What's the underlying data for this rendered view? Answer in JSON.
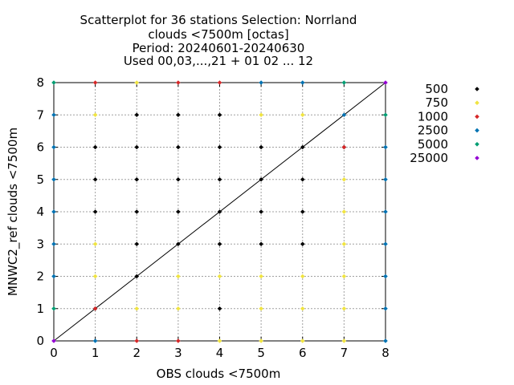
{
  "chart_data": {
    "type": "scatter",
    "title_lines": [
      "Scatterplot for   36 stations Selection: Norrland",
      "clouds <7500m [octas]",
      "Period: 20240601-20240630",
      "Used 00,03,...,21 + 01 02 ... 12"
    ],
    "xlabel": "OBS clouds <7500m",
    "ylabel": "MNWC2_ref clouds <7500m",
    "xlim": [
      0,
      8
    ],
    "ylim": [
      0,
      8
    ],
    "x_ticks": [
      "0",
      "1",
      "2",
      "3",
      "4",
      "5",
      "6",
      "7",
      "8"
    ],
    "y_ticks": [
      "0",
      "1",
      "2",
      "3",
      "4",
      "5",
      "6",
      "7",
      "8"
    ],
    "grid": true,
    "diagonal_line": true,
    "legend_position": "outside-right",
    "series": [
      {
        "name": "500",
        "color": "#000000",
        "points": [
          [
            1,
            1
          ],
          [
            1,
            6
          ],
          [
            1,
            5
          ],
          [
            1,
            4
          ],
          [
            2,
            2
          ],
          [
            2,
            3
          ],
          [
            2,
            4
          ],
          [
            2,
            5
          ],
          [
            2,
            6
          ],
          [
            2,
            7
          ],
          [
            3,
            3
          ],
          [
            3,
            4
          ],
          [
            3,
            5
          ],
          [
            3,
            6
          ],
          [
            3,
            7
          ],
          [
            4,
            1
          ],
          [
            4,
            3
          ],
          [
            4,
            4
          ],
          [
            4,
            5
          ],
          [
            4,
            6
          ],
          [
            4,
            7
          ],
          [
            5,
            3
          ],
          [
            5,
            4
          ],
          [
            5,
            5
          ],
          [
            5,
            6
          ],
          [
            6,
            3
          ],
          [
            6,
            4
          ],
          [
            6,
            5
          ],
          [
            6,
            6
          ],
          [
            7,
            6
          ]
        ]
      },
      {
        "name": "750",
        "color": "#f0e442",
        "points": [
          [
            1,
            7
          ],
          [
            1,
            3
          ],
          [
            1,
            2
          ],
          [
            2,
            8
          ],
          [
            2,
            1
          ],
          [
            3,
            1
          ],
          [
            3,
            2
          ],
          [
            4,
            0
          ],
          [
            4,
            2
          ],
          [
            5,
            7
          ],
          [
            5,
            0
          ],
          [
            5,
            1
          ],
          [
            5,
            2
          ],
          [
            6,
            7
          ],
          [
            6,
            0
          ],
          [
            6,
            1
          ],
          [
            6,
            2
          ],
          [
            7,
            5
          ],
          [
            7,
            4
          ],
          [
            7,
            3
          ],
          [
            7,
            2
          ],
          [
            7,
            1
          ],
          [
            7,
            0
          ]
        ]
      },
      {
        "name": "1000",
        "color": "#d62728",
        "points": [
          [
            1,
            8
          ],
          [
            1,
            1
          ],
          [
            2,
            0
          ],
          [
            3,
            8
          ],
          [
            3,
            0
          ],
          [
            4,
            8
          ],
          [
            7,
            6
          ]
        ]
      },
      {
        "name": "2500",
        "color": "#0072b2",
        "points": [
          [
            0,
            7
          ],
          [
            0,
            6
          ],
          [
            0,
            5
          ],
          [
            0,
            4
          ],
          [
            0,
            3
          ],
          [
            0,
            2
          ],
          [
            1,
            0
          ],
          [
            5,
            8
          ],
          [
            6,
            8
          ],
          [
            7,
            7
          ],
          [
            8,
            6
          ],
          [
            8,
            5
          ],
          [
            8,
            4
          ],
          [
            8,
            3
          ],
          [
            8,
            2
          ],
          [
            8,
            1
          ],
          [
            8,
            0
          ]
        ]
      },
      {
        "name": "5000",
        "color": "#009e73",
        "points": [
          [
            0,
            8
          ],
          [
            0,
            1
          ],
          [
            7,
            8
          ],
          [
            8,
            7
          ]
        ]
      },
      {
        "name": "25000",
        "color": "#9400d3",
        "points": [
          [
            8,
            8
          ],
          [
            0,
            0
          ]
        ]
      }
    ]
  }
}
